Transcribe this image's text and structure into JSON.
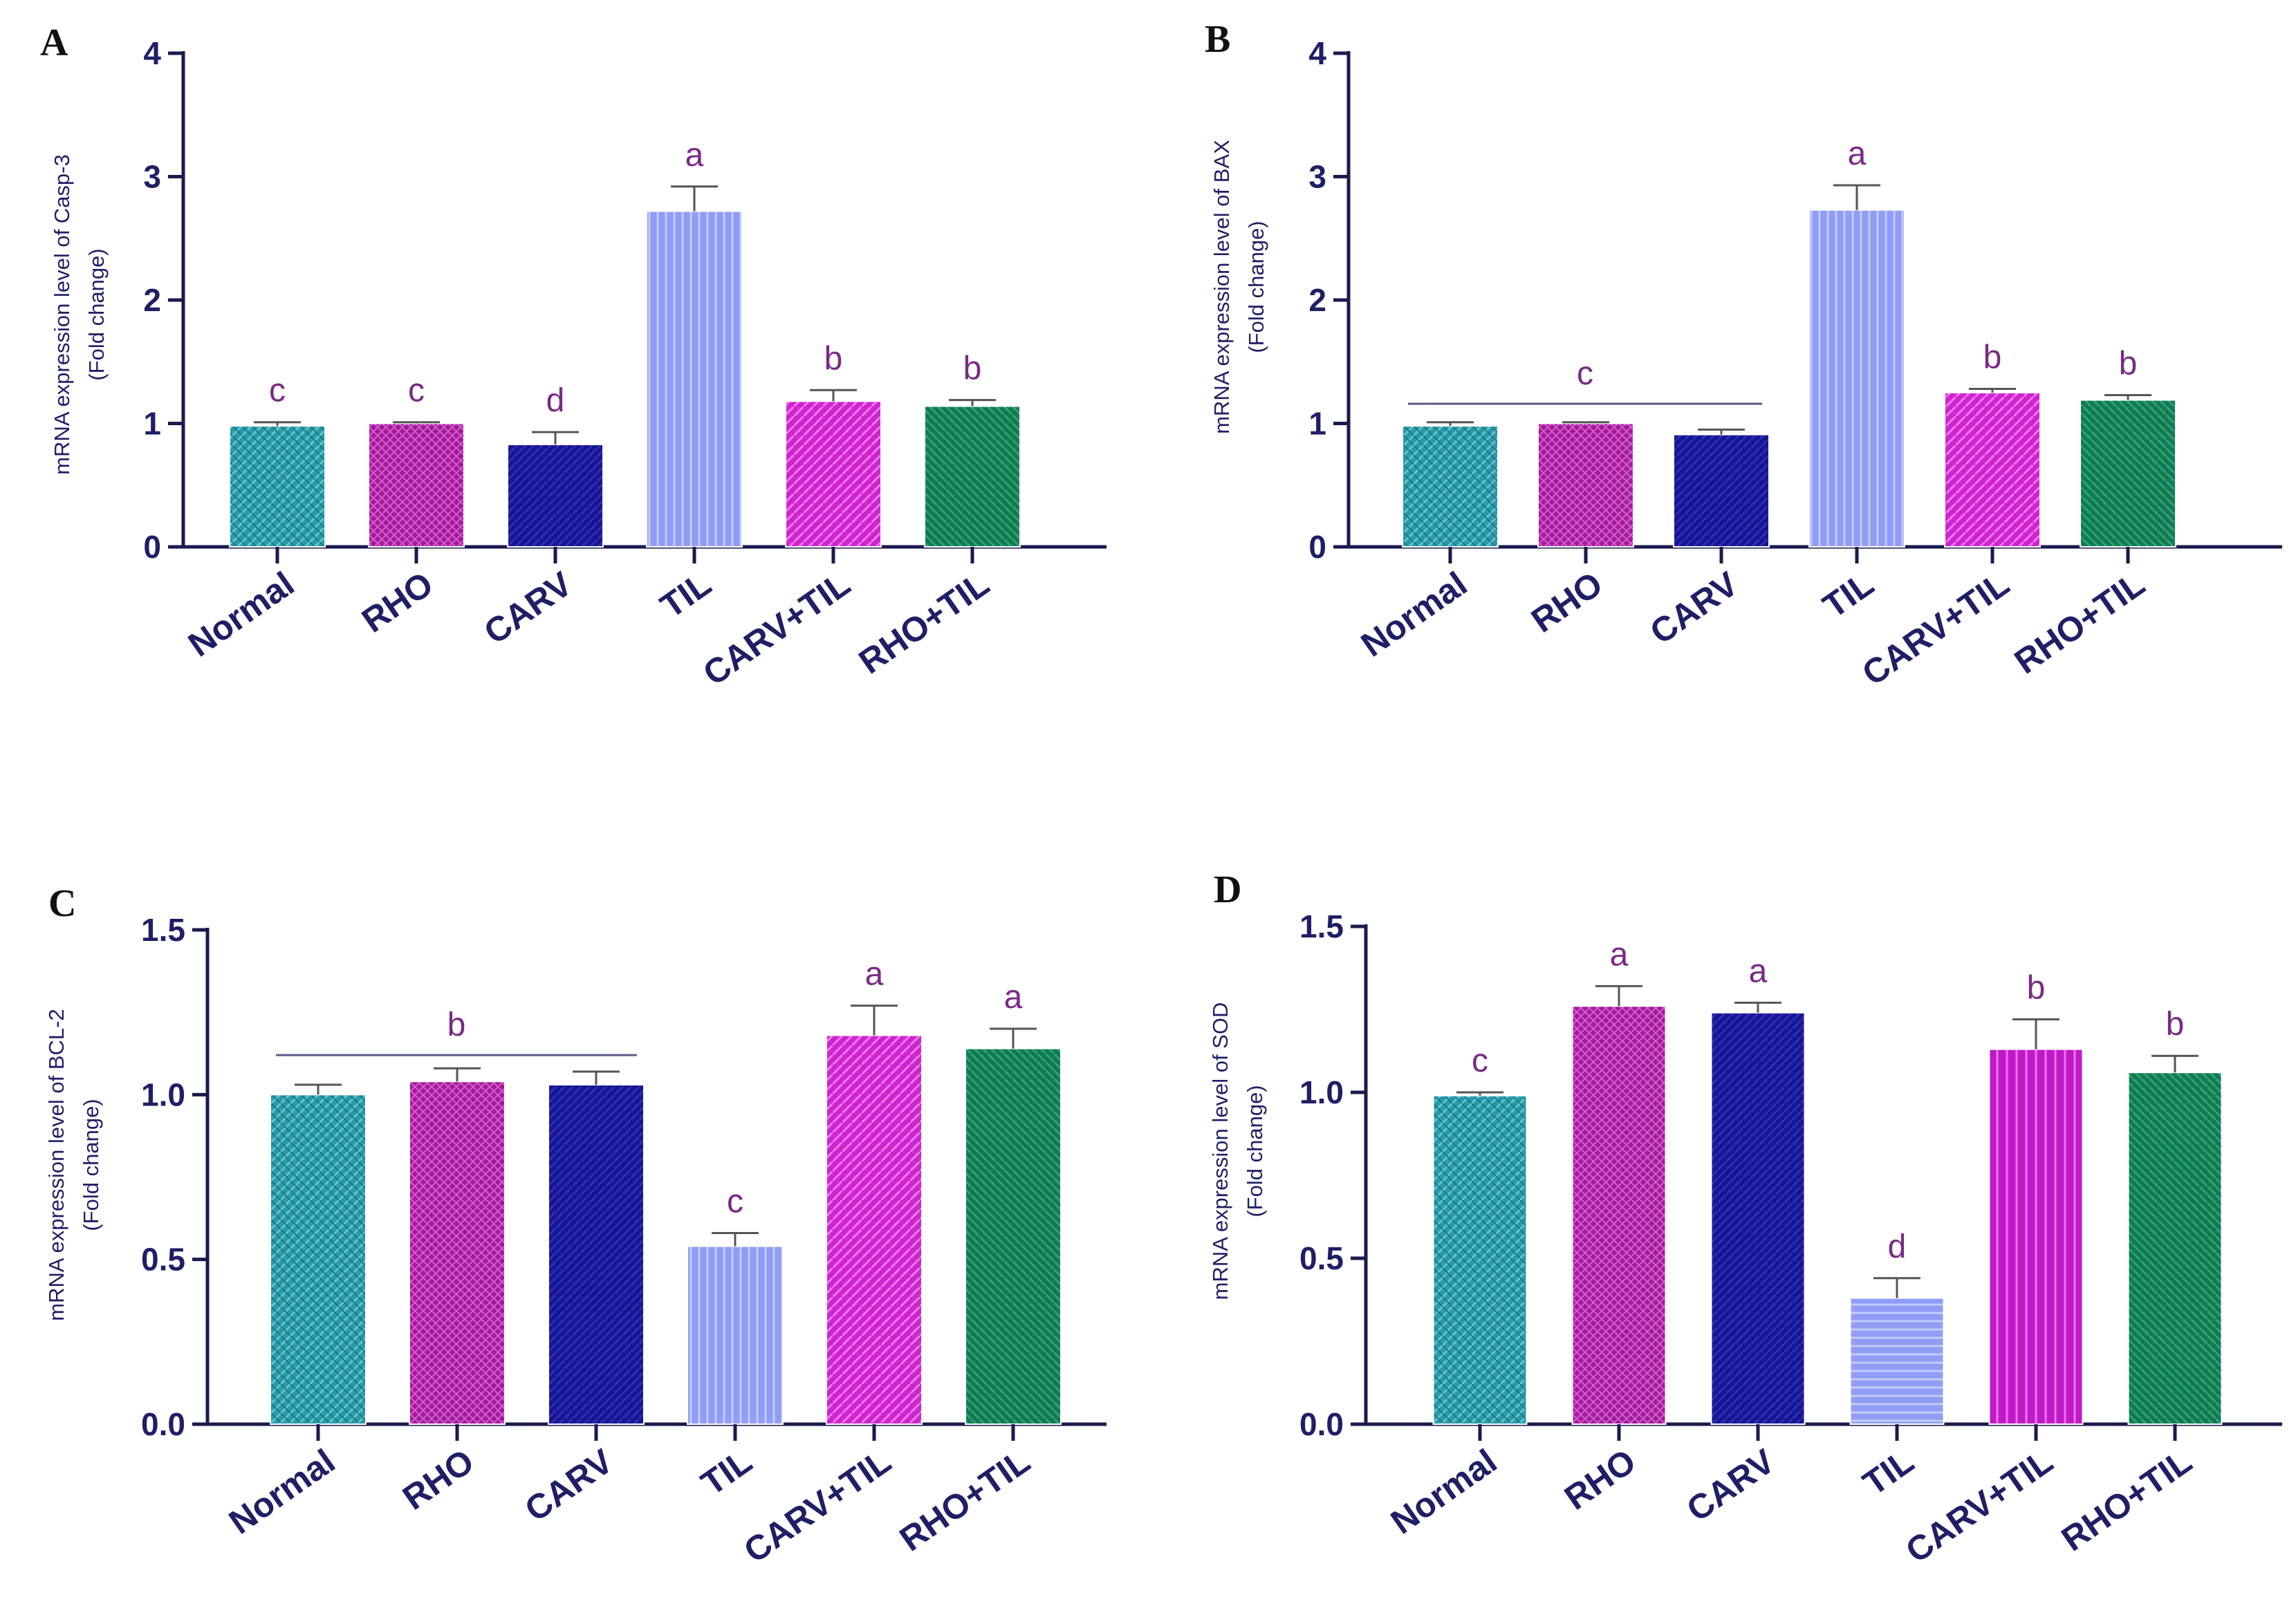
{
  "colors": {
    "Normal": "#2a9aa8",
    "RHO": "#a21a9a",
    "CARV": "#161690",
    "TIL": "#8f9df5",
    "CARV+TIL": "#cf24cf",
    "RHO+TIL": "#127a52",
    "axis": "#1a1a4e",
    "text": "#1f1f66",
    "sig": "#7a2a86"
  },
  "chart_data": [
    {
      "panel": "A",
      "type": "bar",
      "categories": [
        "Normal",
        "RHO",
        "CARV",
        "TIL",
        "CARV+TIL",
        "RHO+TIL"
      ],
      "values": [
        0.98,
        1.0,
        0.83,
        2.72,
        1.18,
        1.14
      ],
      "errors": [
        0.03,
        0.01,
        0.1,
        0.2,
        0.09,
        0.05
      ],
      "sig_labels": [
        "c",
        "c",
        "d",
        "a",
        "b",
        "b"
      ],
      "ylabel_line1": "mRNA expression level of Casp-3",
      "ylabel_line2": "(Fold change)",
      "ylim": [
        0,
        4
      ],
      "yticks": [
        "0",
        "1",
        "2",
        "3",
        "4"
      ],
      "yticks_values": [
        0,
        1,
        2,
        3,
        4
      ]
    },
    {
      "panel": "B",
      "type": "bar",
      "categories": [
        "Normal",
        "RHO",
        "CARV",
        "TIL",
        "CARV+TIL",
        "RHO+TIL"
      ],
      "values": [
        0.98,
        1.0,
        0.91,
        2.73,
        1.25,
        1.19
      ],
      "errors": [
        0.03,
        0.01,
        0.04,
        0.2,
        0.03,
        0.04
      ],
      "sig_labels": [
        "",
        "",
        "",
        "a",
        "b",
        "b"
      ],
      "group_bracket": {
        "label": "c",
        "from": 0,
        "to": 2,
        "y": 1.16
      },
      "ylabel_line1": "mRNA expression level of BAX",
      "ylabel_line2": "(Fold change)",
      "ylim": [
        0,
        4
      ],
      "yticks": [
        "0",
        "1",
        "2",
        "3",
        "4"
      ],
      "yticks_values": [
        0,
        1,
        2,
        3,
        4
      ]
    },
    {
      "panel": "C",
      "type": "bar",
      "categories": [
        "Normal",
        "RHO",
        "CARV",
        "TIL",
        "CARV+TIL",
        "RHO+TIL"
      ],
      "values": [
        1.0,
        1.04,
        1.03,
        0.54,
        1.18,
        1.14
      ],
      "errors": [
        0.03,
        0.04,
        0.04,
        0.04,
        0.09,
        0.06
      ],
      "sig_labels": [
        "",
        "",
        "",
        "c",
        "a",
        "a"
      ],
      "group_bracket": {
        "label": "b",
        "from": 0,
        "to": 2,
        "y": 1.12
      },
      "ylabel_line1": "mRNA expression level of BCL-2",
      "ylabel_line2": "(Fold change)",
      "ylim": [
        0,
        1.5
      ],
      "yticks": [
        "0.0",
        "0.5",
        "1.0",
        "1.5"
      ],
      "yticks_values": [
        0,
        0.5,
        1.0,
        1.5
      ]
    },
    {
      "panel": "D",
      "type": "bar",
      "categories": [
        "Normal",
        "RHO",
        "CARV",
        "TIL",
        "CARV+TIL",
        "RHO+TIL"
      ],
      "values": [
        0.99,
        1.26,
        1.24,
        0.38,
        1.13,
        1.06
      ],
      "errors": [
        0.01,
        0.06,
        0.03,
        0.06,
        0.09,
        0.05
      ],
      "sig_labels": [
        "c",
        "a",
        "a",
        "d",
        "b",
        "b"
      ],
      "ylabel_line1": "mRNA expression level of SOD",
      "ylabel_line2": "(Fold change)",
      "ylim": [
        0,
        1.5
      ],
      "yticks": [
        "0.0",
        "0.5",
        "1.0",
        "1.5"
      ],
      "yticks_values": [
        0,
        0.5,
        1.0,
        1.5
      ]
    }
  ]
}
